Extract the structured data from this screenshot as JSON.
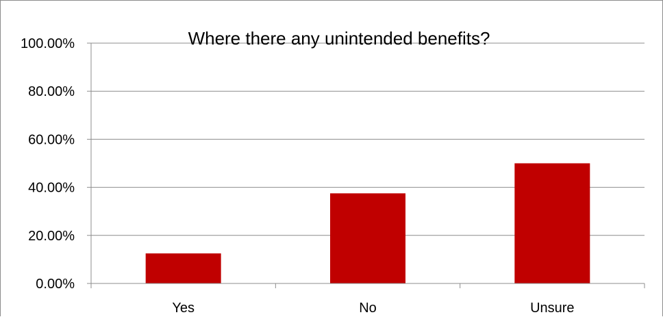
{
  "chart_data": {
    "type": "bar",
    "title": "Where there any unintended benefits?",
    "categories": [
      "Yes",
      "No",
      "Unsure"
    ],
    "values": [
      12.5,
      37.5,
      50.0
    ],
    "value_unit": "%",
    "ylim": [
      0,
      100
    ],
    "yticks": [
      0,
      20,
      40,
      60,
      80,
      100
    ],
    "ytick_labels": [
      "0.00%",
      "20.00%",
      "40.00%",
      "60.00%",
      "80.00%",
      "100.00%"
    ],
    "xlabel": "",
    "ylabel": "",
    "grid": "horizontal",
    "legend": "none",
    "colors": {
      "bar": "#C00000",
      "grid": "#8c8c8c",
      "axis": "#8c8c8c",
      "text": "#000000"
    }
  }
}
